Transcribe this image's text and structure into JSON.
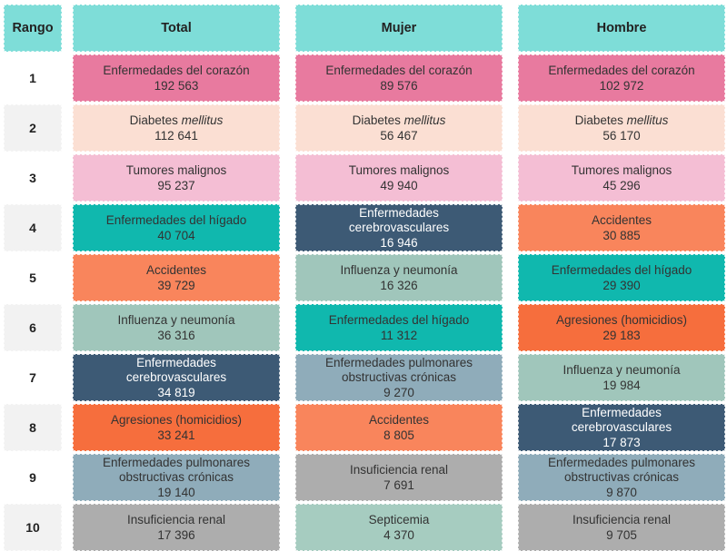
{
  "header_bg": "#7EDDD8",
  "zebra_gray": "#F2F2F2",
  "text_dark": "#333333",
  "text_light": "#FFFFFF",
  "headers": {
    "rango": "Rango",
    "total": "Total",
    "mujer": "Mujer",
    "hombre": "Hombre"
  },
  "ranks": [
    "1",
    "2",
    "3",
    "4",
    "5",
    "6",
    "7",
    "8",
    "9",
    "10"
  ],
  "cause_colors": {
    "enfermedades_del_corazon": "#E87A9F",
    "diabetes_mellitus": "#FBDFD3",
    "tumores_malignos": "#F4BED4",
    "enfermedades_del_higado": "#10B8AE",
    "accidentes": "#F9855C",
    "influenza_y_neumonia": "#A0C6BB",
    "enfermedades_cerebrovasculares": "#3D5A75",
    "agresiones_homicidios": "#F66E3D",
    "enfermedades_pulmonares_obstructivas_cronicas": "#8FACBA",
    "insuficiencia_renal": "#ADADAD",
    "septicemia": "#A6CCC0"
  },
  "columns": {
    "total": {
      "header": "Total",
      "rows": [
        {
          "label": "Enfermedades del corazón",
          "value": "192 563",
          "bg": "#E87A9F",
          "fg": "#333333"
        },
        {
          "label_pre": "Diabetes",
          "label_italic": "mellitus",
          "value": "112 641",
          "bg": "#FBDFD3",
          "fg": "#333333"
        },
        {
          "label": "Tumores malignos",
          "value": "95 237",
          "bg": "#F4BED4",
          "fg": "#333333"
        },
        {
          "label": "Enfermedades del hígado",
          "value": "40 704",
          "bg": "#10B8AE",
          "fg": "#333333"
        },
        {
          "label": "Accidentes",
          "value": "39 729",
          "bg": "#F9855C",
          "fg": "#333333"
        },
        {
          "label": "Influenza y neumonía",
          "value": "36 316",
          "bg": "#A0C6BB",
          "fg": "#333333"
        },
        {
          "label": "Enfermedades\ncerebrovasculares",
          "value": "34 819",
          "bg": "#3D5A75",
          "fg": "#FFFFFF"
        },
        {
          "label": "Agresiones (homicidios)",
          "value": "33 241",
          "bg": "#F66E3D",
          "fg": "#333333"
        },
        {
          "label": "Enfermedades pulmonares\nobstructivas crónicas",
          "value": "19 140",
          "bg": "#8FACBA",
          "fg": "#333333"
        },
        {
          "label": "Insuficiencia renal",
          "value": "17 396",
          "bg": "#ADADAD",
          "fg": "#333333"
        }
      ]
    },
    "mujer": {
      "header": "Mujer",
      "rows": [
        {
          "label": "Enfermedades del corazón",
          "value": "89 576",
          "bg": "#E87A9F",
          "fg": "#333333"
        },
        {
          "label_pre": "Diabetes",
          "label_italic": "mellitus",
          "value": "56 467",
          "bg": "#FBDFD3",
          "fg": "#333333"
        },
        {
          "label": "Tumores malignos",
          "value": "49 940",
          "bg": "#F4BED4",
          "fg": "#333333"
        },
        {
          "label": "Enfermedades\ncerebrovasculares",
          "value": "16 946",
          "bg": "#3D5A75",
          "fg": "#FFFFFF"
        },
        {
          "label": "Influenza y neumonía",
          "value": "16 326",
          "bg": "#A0C6BB",
          "fg": "#333333"
        },
        {
          "label": "Enfermedades del hígado",
          "value": "11 312",
          "bg": "#10B8AE",
          "fg": "#333333"
        },
        {
          "label": "Enfermedades pulmonares\nobstructivas crónicas",
          "value": "9 270",
          "bg": "#8FACBA",
          "fg": "#333333"
        },
        {
          "label": "Accidentes",
          "value": "8 805",
          "bg": "#F9855C",
          "fg": "#333333"
        },
        {
          "label": "Insuficiencia renal",
          "value": "7 691",
          "bg": "#ADADAD",
          "fg": "#333333"
        },
        {
          "label": "Septicemia",
          "value": "4 370",
          "bg": "#A6CCC0",
          "fg": "#333333"
        }
      ]
    },
    "hombre": {
      "header": "Hombre",
      "rows": [
        {
          "label": "Enfermedades del corazón",
          "value": "102 972",
          "bg": "#E87A9F",
          "fg": "#333333"
        },
        {
          "label_pre": "Diabetes",
          "label_italic": "mellitus",
          "value": "56 170",
          "bg": "#FBDFD3",
          "fg": "#333333"
        },
        {
          "label": "Tumores malignos",
          "value": "45 296",
          "bg": "#F4BED4",
          "fg": "#333333"
        },
        {
          "label": "Accidentes",
          "value": "30 885",
          "bg": "#F9855C",
          "fg": "#333333"
        },
        {
          "label": "Enfermedades del hígado",
          "value": "29 390",
          "bg": "#10B8AE",
          "fg": "#333333"
        },
        {
          "label": "Agresiones (homicidios)",
          "value": "29 183",
          "bg": "#F66E3D",
          "fg": "#333333"
        },
        {
          "label": "Influenza y neumonía",
          "value": "19 984",
          "bg": "#A0C6BB",
          "fg": "#333333"
        },
        {
          "label": "Enfermedades\ncerebrovasculares",
          "value": "17 873",
          "bg": "#3D5A75",
          "fg": "#FFFFFF"
        },
        {
          "label": "Enfermedades pulmonares\nobstructivas crónicas",
          "value": "9 870",
          "bg": "#8FACBA",
          "fg": "#333333"
        },
        {
          "label": "Insuficiencia renal",
          "value": "9 705",
          "bg": "#ADADAD",
          "fg": "#333333"
        }
      ]
    }
  },
  "chart_data": {
    "type": "table",
    "title": "Principales causas de defunción por rango, total y sexo",
    "columns": [
      "Rango",
      "Total",
      "Mujer",
      "Hombre"
    ],
    "rows": [
      {
        "rango": 1,
        "total": {
          "causa": "Enfermedades del corazón",
          "defunciones": 192563
        },
        "mujer": {
          "causa": "Enfermedades del corazón",
          "defunciones": 89576
        },
        "hombre": {
          "causa": "Enfermedades del corazón",
          "defunciones": 102972
        }
      },
      {
        "rango": 2,
        "total": {
          "causa": "Diabetes mellitus",
          "defunciones": 112641
        },
        "mujer": {
          "causa": "Diabetes mellitus",
          "defunciones": 56467
        },
        "hombre": {
          "causa": "Diabetes mellitus",
          "defunciones": 56170
        }
      },
      {
        "rango": 3,
        "total": {
          "causa": "Tumores malignos",
          "defunciones": 95237
        },
        "mujer": {
          "causa": "Tumores malignos",
          "defunciones": 49940
        },
        "hombre": {
          "causa": "Tumores malignos",
          "defunciones": 45296
        }
      },
      {
        "rango": 4,
        "total": {
          "causa": "Enfermedades del hígado",
          "defunciones": 40704
        },
        "mujer": {
          "causa": "Enfermedades cerebrovasculares",
          "defunciones": 16946
        },
        "hombre": {
          "causa": "Accidentes",
          "defunciones": 30885
        }
      },
      {
        "rango": 5,
        "total": {
          "causa": "Accidentes",
          "defunciones": 39729
        },
        "mujer": {
          "causa": "Influenza y neumonía",
          "defunciones": 16326
        },
        "hombre": {
          "causa": "Enfermedades del hígado",
          "defunciones": 29390
        }
      },
      {
        "rango": 6,
        "total": {
          "causa": "Influenza y neumonía",
          "defunciones": 36316
        },
        "mujer": {
          "causa": "Enfermedades del hígado",
          "defunciones": 11312
        },
        "hombre": {
          "causa": "Agresiones (homicidios)",
          "defunciones": 29183
        }
      },
      {
        "rango": 7,
        "total": {
          "causa": "Enfermedades cerebrovasculares",
          "defunciones": 34819
        },
        "mujer": {
          "causa": "Enfermedades pulmonares obstructivas crónicas",
          "defunciones": 9270
        },
        "hombre": {
          "causa": "Influenza y neumonía",
          "defunciones": 19984
        }
      },
      {
        "rango": 8,
        "total": {
          "causa": "Agresiones (homicidios)",
          "defunciones": 33241
        },
        "mujer": {
          "causa": "Accidentes",
          "defunciones": 8805
        },
        "hombre": {
          "causa": "Enfermedades cerebrovasculares",
          "defunciones": 17873
        }
      },
      {
        "rango": 9,
        "total": {
          "causa": "Enfermedades pulmonares obstructivas crónicas",
          "defunciones": 19140
        },
        "mujer": {
          "causa": "Insuficiencia renal",
          "defunciones": 7691
        },
        "hombre": {
          "causa": "Enfermedades pulmonares obstructivas crónicas",
          "defunciones": 9870
        }
      },
      {
        "rango": 10,
        "total": {
          "causa": "Insuficiencia renal",
          "defunciones": 17396
        },
        "mujer": {
          "causa": "Septicemia",
          "defunciones": 4370
        },
        "hombre": {
          "causa": "Insuficiencia renal",
          "defunciones": 9705
        }
      }
    ]
  }
}
